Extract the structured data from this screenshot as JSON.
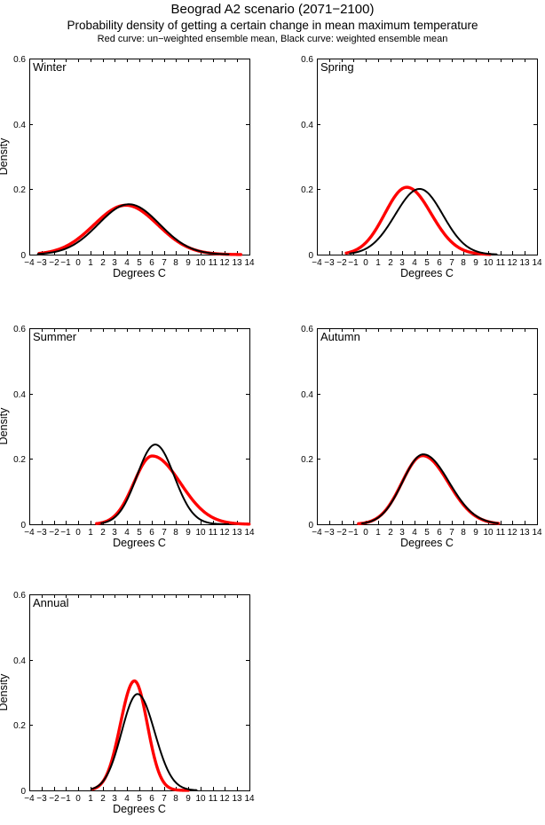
{
  "figure": {
    "title": "Beograd A2 scenario (2071−2100)",
    "subtitle": "Probability density of getting a certain change in mean maximum temperature",
    "legend_note": "Red curve: un−weighted ensemble mean, Black curve: weighted ensemble mean"
  },
  "colors": {
    "background": "#ffffff",
    "axis": "#000000",
    "unweighted_curve": "#ff0000",
    "weighted_curve": "#000000"
  },
  "chart_data": [
    {
      "panel": "Winter",
      "type": "line",
      "xlabel": "Degrees C",
      "ylabel": "Density",
      "show_ylabel": true,
      "xlim": [
        -4,
        14
      ],
      "xtick_step": 1,
      "ylim": [
        0,
        0.6
      ],
      "ytick_step": 0.2,
      "grid": false,
      "series": [
        {
          "name": "un-weighted ensemble mean",
          "color": "#ff0000",
          "line_width": 3.4,
          "shape": "gaussian",
          "mean": 3.9,
          "sd_left": 2.6,
          "sd_right": 2.6,
          "peak": 0.151,
          "x_range": [
            -3.2,
            13.3
          ]
        },
        {
          "name": "weighted ensemble mean",
          "color": "#000000",
          "line_width": 2,
          "shape": "gaussian",
          "mean": 4.15,
          "sd_left": 2.5,
          "sd_right": 2.5,
          "peak": 0.154,
          "x_range": [
            -3.3,
            12.3
          ]
        }
      ]
    },
    {
      "panel": "Spring",
      "type": "line",
      "xlabel": "Degrees C",
      "ylabel": "",
      "show_ylabel": false,
      "xlim": [
        -4,
        14
      ],
      "xtick_step": 1,
      "ylim": [
        0,
        0.6
      ],
      "ytick_step": 0.2,
      "grid": false,
      "series": [
        {
          "name": "un-weighted ensemble mean",
          "color": "#ff0000",
          "line_width": 3.4,
          "shape": "gaussian",
          "mean": 3.35,
          "sd_left": 1.8,
          "sd_right": 2.0,
          "peak": 0.206,
          "x_range": [
            -1.6,
            10.2
          ]
        },
        {
          "name": "weighted ensemble mean",
          "color": "#000000",
          "line_width": 2,
          "shape": "gaussian",
          "mean": 4.4,
          "sd_left": 2.0,
          "sd_right": 1.9,
          "peak": 0.201,
          "x_range": [
            -1.3,
            10.7
          ]
        }
      ]
    },
    {
      "panel": "Summer",
      "type": "line",
      "xlabel": "Degrees C",
      "ylabel": "Density",
      "show_ylabel": true,
      "xlim": [
        -4,
        14
      ],
      "xtick_step": 1,
      "ylim": [
        0,
        0.6
      ],
      "ytick_step": 0.2,
      "grid": false,
      "series": [
        {
          "name": "un-weighted ensemble mean",
          "color": "#ff0000",
          "line_width": 3.4,
          "shape": "gaussian",
          "mean": 6.05,
          "sd_left": 1.5,
          "sd_right": 2.3,
          "peak": 0.209,
          "x_range": [
            1.5,
            14
          ]
        },
        {
          "name": "weighted ensemble mean",
          "color": "#000000",
          "line_width": 2,
          "shape": "gaussian",
          "mean": 6.3,
          "sd_left": 1.5,
          "sd_right": 1.55,
          "peak": 0.244,
          "x_range": [
            1.9,
            12.3
          ]
        }
      ]
    },
    {
      "panel": "Autumn",
      "type": "line",
      "xlabel": "Degrees C",
      "ylabel": "",
      "show_ylabel": false,
      "xlim": [
        -4,
        14
      ],
      "xtick_step": 1,
      "ylim": [
        0,
        0.6
      ],
      "ytick_step": 0.2,
      "grid": false,
      "series": [
        {
          "name": "un-weighted ensemble mean",
          "color": "#ff0000",
          "line_width": 3.4,
          "shape": "gaussian",
          "mean": 4.65,
          "sd_left": 1.7,
          "sd_right": 2.1,
          "peak": 0.21,
          "x_range": [
            -0.6,
            10.9
          ]
        },
        {
          "name": "weighted ensemble mean",
          "color": "#000000",
          "line_width": 2,
          "shape": "gaussian",
          "mean": 4.7,
          "sd_left": 1.7,
          "sd_right": 2.1,
          "peak": 0.214,
          "x_range": [
            -0.3,
            10.8
          ]
        }
      ]
    },
    {
      "panel": "Annual",
      "type": "line",
      "xlabel": "Degrees C",
      "ylabel": "Density",
      "show_ylabel": true,
      "xlim": [
        -4,
        14
      ],
      "xtick_step": 1,
      "ylim": [
        0,
        0.6
      ],
      "ytick_step": 0.2,
      "grid": false,
      "series": [
        {
          "name": "un-weighted ensemble mean",
          "color": "#ff0000",
          "line_width": 3.4,
          "shape": "gaussian",
          "mean": 4.6,
          "sd_left": 1.15,
          "sd_right": 1.05,
          "peak": 0.335,
          "x_range": [
            1.2,
            9.0
          ]
        },
        {
          "name": "weighted ensemble mean",
          "color": "#000000",
          "line_width": 2,
          "shape": "gaussian",
          "mean": 4.85,
          "sd_left": 1.3,
          "sd_right": 1.4,
          "peak": 0.295,
          "x_range": [
            1.1,
            9.7
          ]
        }
      ]
    }
  ]
}
